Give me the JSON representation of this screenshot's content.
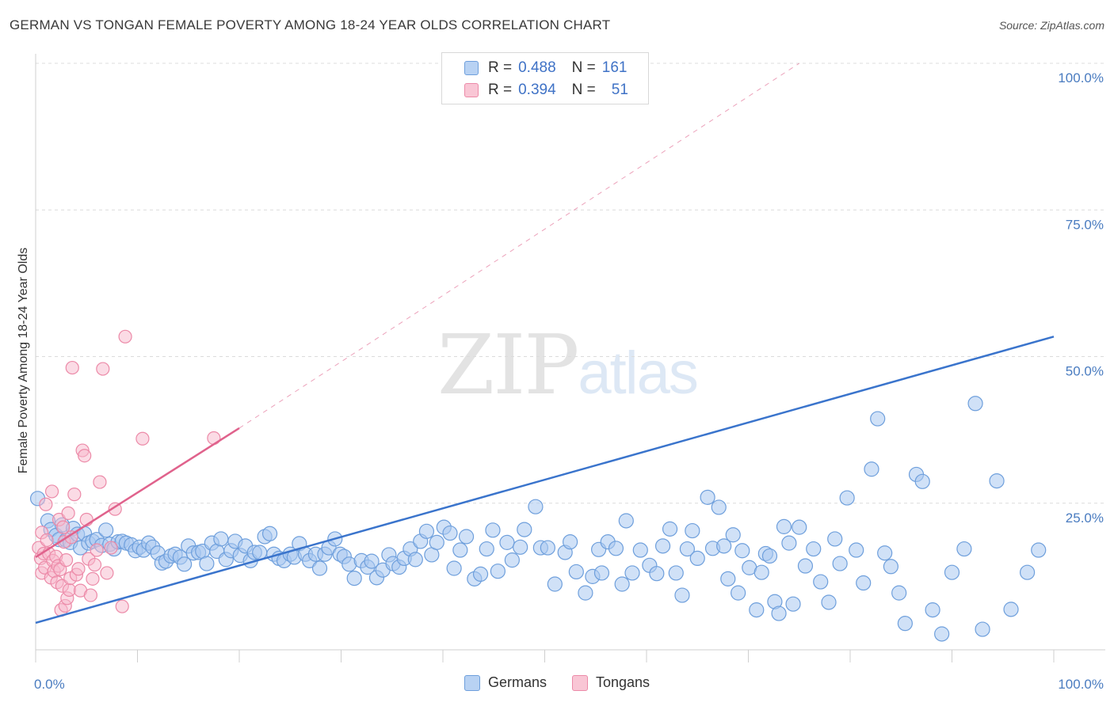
{
  "title": "GERMAN VS TONGAN FEMALE POVERTY AMONG 18-24 YEAR OLDS CORRELATION CHART",
  "source": "Source: ZipAtlas.com",
  "watermark": {
    "zip": "ZIP",
    "atlas": "atlas"
  },
  "legend": {
    "rows": [
      {
        "r_label": "R =",
        "r_value": "0.488",
        "n_label": "N =",
        "n_value": "161"
      },
      {
        "r_label": "R =",
        "r_value": "0.394",
        "n_label": "N =",
        "n_value": "51"
      }
    ]
  },
  "bottom_legend": {
    "germans": "Germans",
    "tongans": "Tongans"
  },
  "colors": {
    "german_fill": "#a9c8f0",
    "german_stroke": "#6e9fdc",
    "german_line": "#3a74cc",
    "tongan_fill": "#f7b8cb",
    "tongan_stroke": "#ec8aa8",
    "tongan_line": "#e0628c",
    "tick_label": "#4a7cc0",
    "grid": "#dcdcdc"
  },
  "chart_data": {
    "type": "scatter",
    "xlabel": "",
    "ylabel": "Female Poverty Among 18-24 Year Olds",
    "xlim": [
      0,
      100
    ],
    "ylim": [
      0,
      100
    ],
    "x_tick_labels": [
      "0.0%",
      "100.0%"
    ],
    "y_tick_labels": [
      "25.0%",
      "50.0%",
      "75.0%",
      "100.0%"
    ],
    "y_ticks": [
      25,
      50,
      75,
      100
    ],
    "grid": "horizontal dashed",
    "legend_placement": "top-center",
    "series": [
      {
        "name": "Germans",
        "r": 0.488,
        "n": 161,
        "trend": {
          "x": [
            0,
            100
          ],
          "y": [
            4.6,
            53.4
          ],
          "style": "solid"
        },
        "points": [
          [
            0.2,
            25.8
          ],
          [
            1.2,
            22.0
          ],
          [
            1.5,
            20.5
          ],
          [
            2.0,
            19.5
          ],
          [
            2.3,
            18.8
          ],
          [
            2.6,
            21.3
          ],
          [
            3.0,
            18.7
          ],
          [
            3.4,
            18.3
          ],
          [
            3.7,
            20.7
          ],
          [
            4.1,
            19.7
          ],
          [
            4.4,
            17.4
          ],
          [
            4.8,
            19.8
          ],
          [
            5.2,
            18.2
          ],
          [
            5.6,
            18.5
          ],
          [
            6.0,
            18.8
          ],
          [
            6.5,
            17.8
          ],
          [
            6.9,
            20.4
          ],
          [
            7.3,
            18.0
          ],
          [
            7.7,
            17.2
          ],
          [
            8.1,
            18.4
          ],
          [
            8.5,
            18.5
          ],
          [
            8.9,
            18.2
          ],
          [
            9.4,
            17.9
          ],
          [
            9.8,
            16.9
          ],
          [
            10.2,
            17.5
          ],
          [
            10.6,
            17.0
          ],
          [
            11.1,
            18.2
          ],
          [
            11.5,
            17.5
          ],
          [
            12.0,
            16.5
          ],
          [
            12.4,
            14.8
          ],
          [
            12.8,
            15.1
          ],
          [
            13.3,
            16.0
          ],
          [
            13.7,
            16.3
          ],
          [
            14.2,
            15.8
          ],
          [
            14.6,
            14.6
          ],
          [
            15.0,
            17.7
          ],
          [
            15.5,
            16.5
          ],
          [
            16.0,
            16.6
          ],
          [
            16.4,
            16.8
          ],
          [
            16.8,
            14.7
          ],
          [
            17.3,
            18.2
          ],
          [
            17.8,
            16.8
          ],
          [
            18.2,
            18.9
          ],
          [
            18.7,
            15.4
          ],
          [
            19.2,
            16.9
          ],
          [
            19.6,
            18.5
          ],
          [
            20.1,
            16.1
          ],
          [
            20.6,
            17.7
          ],
          [
            21.1,
            15.2
          ],
          [
            21.5,
            16.6
          ],
          [
            22.0,
            16.6
          ],
          [
            22.5,
            19.3
          ],
          [
            23.0,
            19.8
          ],
          [
            23.4,
            16.3
          ],
          [
            23.9,
            15.6
          ],
          [
            24.4,
            15.2
          ],
          [
            25.0,
            16.3
          ],
          [
            25.4,
            15.8
          ],
          [
            25.9,
            18.1
          ],
          [
            26.5,
            16.3
          ],
          [
            26.9,
            15.2
          ],
          [
            27.5,
            16.3
          ],
          [
            27.9,
            13.9
          ],
          [
            28.4,
            16.3
          ],
          [
            28.8,
            17.4
          ],
          [
            29.4,
            18.9
          ],
          [
            29.9,
            16.3
          ],
          [
            30.3,
            15.9
          ],
          [
            30.8,
            14.6
          ],
          [
            31.3,
            12.2
          ],
          [
            32.0,
            15.2
          ],
          [
            32.6,
            14.1
          ],
          [
            33.0,
            15.1
          ],
          [
            33.5,
            12.3
          ],
          [
            34.1,
            13.6
          ],
          [
            34.7,
            16.2
          ],
          [
            35.1,
            14.7
          ],
          [
            35.7,
            14.1
          ],
          [
            36.2,
            15.6
          ],
          [
            36.8,
            17.2
          ],
          [
            37.3,
            15.4
          ],
          [
            37.8,
            18.5
          ],
          [
            38.4,
            20.2
          ],
          [
            38.9,
            16.2
          ],
          [
            39.4,
            18.3
          ],
          [
            40.1,
            20.9
          ],
          [
            40.7,
            19.9
          ],
          [
            41.1,
            13.9
          ],
          [
            41.7,
            17.0
          ],
          [
            42.3,
            19.3
          ],
          [
            43.1,
            12.1
          ],
          [
            43.7,
            12.9
          ],
          [
            44.3,
            17.2
          ],
          [
            44.9,
            20.4
          ],
          [
            45.4,
            13.4
          ],
          [
            46.3,
            18.3
          ],
          [
            46.8,
            15.3
          ],
          [
            47.6,
            17.5
          ],
          [
            48.0,
            20.5
          ],
          [
            49.1,
            24.4
          ],
          [
            49.6,
            17.4
          ],
          [
            50.3,
            17.4
          ],
          [
            51.0,
            11.2
          ],
          [
            52.0,
            16.6
          ],
          [
            52.5,
            18.4
          ],
          [
            53.1,
            13.3
          ],
          [
            54.0,
            9.7
          ],
          [
            54.7,
            12.5
          ],
          [
            55.3,
            17.1
          ],
          [
            55.6,
            13.1
          ],
          [
            56.2,
            18.4
          ],
          [
            57.0,
            17.3
          ],
          [
            57.6,
            11.2
          ],
          [
            58.0,
            22.0
          ],
          [
            58.6,
            13.1
          ],
          [
            59.4,
            17.0
          ],
          [
            60.3,
            14.4
          ],
          [
            61.0,
            13.0
          ],
          [
            61.6,
            17.7
          ],
          [
            62.3,
            20.6
          ],
          [
            62.9,
            13.1
          ],
          [
            63.5,
            9.3
          ],
          [
            64.0,
            17.2
          ],
          [
            64.5,
            20.3
          ],
          [
            65.0,
            15.6
          ],
          [
            66.0,
            26.0
          ],
          [
            66.5,
            17.3
          ],
          [
            67.1,
            24.3
          ],
          [
            67.6,
            17.7
          ],
          [
            68.0,
            12.1
          ],
          [
            68.5,
            19.6
          ],
          [
            69.0,
            9.7
          ],
          [
            69.4,
            16.9
          ],
          [
            70.1,
            14.0
          ],
          [
            70.8,
            6.8
          ],
          [
            71.3,
            13.2
          ],
          [
            71.7,
            16.4
          ],
          [
            72.1,
            16.0
          ],
          [
            72.6,
            8.2
          ],
          [
            73.0,
            6.2
          ],
          [
            73.5,
            21.0
          ],
          [
            74.0,
            18.2
          ],
          [
            74.4,
            7.8
          ],
          [
            75.0,
            20.9
          ],
          [
            75.6,
            14.3
          ],
          [
            76.4,
            17.2
          ],
          [
            77.1,
            11.6
          ],
          [
            77.9,
            8.1
          ],
          [
            78.5,
            18.9
          ],
          [
            79.0,
            14.7
          ],
          [
            79.7,
            25.9
          ],
          [
            80.6,
            17.0
          ],
          [
            81.3,
            11.4
          ],
          [
            82.1,
            30.8
          ],
          [
            82.7,
            39.4
          ],
          [
            83.4,
            16.5
          ],
          [
            84.0,
            14.2
          ],
          [
            84.8,
            9.7
          ],
          [
            85.4,
            4.5
          ],
          [
            86.5,
            29.9
          ],
          [
            87.1,
            28.7
          ],
          [
            88.1,
            6.8
          ],
          [
            89.0,
            2.7
          ],
          [
            90.0,
            13.2
          ],
          [
            91.2,
            17.2
          ],
          [
            92.3,
            42.0
          ],
          [
            93.0,
            3.5
          ],
          [
            94.4,
            28.8
          ],
          [
            95.8,
            6.9
          ],
          [
            97.4,
            13.2
          ],
          [
            98.5,
            17.0
          ]
        ]
      },
      {
        "name": "Tongans",
        "r": 0.394,
        "n": 51,
        "trend": {
          "x": [
            0,
            20
          ],
          "y": [
            15.8,
            37.8
          ],
          "style": "solid",
          "extension": {
            "x": [
              20,
              75
            ],
            "y": [
              37.8,
              100
            ],
            "style": "dashed"
          }
        },
        "points": [
          [
            0.3,
            17.4
          ],
          [
            0.5,
            15.6
          ],
          [
            0.6,
            13.1
          ],
          [
            0.6,
            20.0
          ],
          [
            0.8,
            16.4
          ],
          [
            0.9,
            14.0
          ],
          [
            1.0,
            24.8
          ],
          [
            1.1,
            18.7
          ],
          [
            1.3,
            16.4
          ],
          [
            1.5,
            12.3
          ],
          [
            1.6,
            27.0
          ],
          [
            1.7,
            15.2
          ],
          [
            1.8,
            13.4
          ],
          [
            2.0,
            15.9
          ],
          [
            2.1,
            11.5
          ],
          [
            2.2,
            14.3
          ],
          [
            2.3,
            22.2
          ],
          [
            2.4,
            13.7
          ],
          [
            2.5,
            6.8
          ],
          [
            2.6,
            10.9
          ],
          [
            2.7,
            20.9
          ],
          [
            2.8,
            18.4
          ],
          [
            2.9,
            7.5
          ],
          [
            3.0,
            15.3
          ],
          [
            3.1,
            8.8
          ],
          [
            3.2,
            23.3
          ],
          [
            3.3,
            10.2
          ],
          [
            3.4,
            12.2
          ],
          [
            3.5,
            19.2
          ],
          [
            3.6,
            48.1
          ],
          [
            3.8,
            26.5
          ],
          [
            4.0,
            12.8
          ],
          [
            4.2,
            13.8
          ],
          [
            4.4,
            10.1
          ],
          [
            4.6,
            34.0
          ],
          [
            4.8,
            33.1
          ],
          [
            5.0,
            22.2
          ],
          [
            5.2,
            15.5
          ],
          [
            5.4,
            9.3
          ],
          [
            5.6,
            12.1
          ],
          [
            5.8,
            14.5
          ],
          [
            6.0,
            17.0
          ],
          [
            6.3,
            28.6
          ],
          [
            6.6,
            47.9
          ],
          [
            7.0,
            13.1
          ],
          [
            7.4,
            17.4
          ],
          [
            7.8,
            24.0
          ],
          [
            8.5,
            7.4
          ],
          [
            8.8,
            53.4
          ],
          [
            10.5,
            36.0
          ],
          [
            17.5,
            36.1
          ]
        ]
      }
    ]
  }
}
